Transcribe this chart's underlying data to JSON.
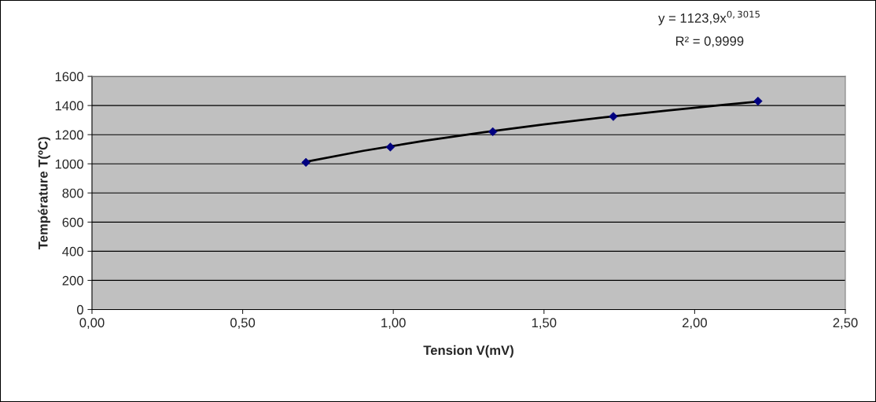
{
  "chart_data": {
    "type": "scatter",
    "xlabel": "Tension V(mV)",
    "ylabel": "Température T(ºC)",
    "annotations": [
      "y = 1123,9x$^{0,3015}$",
      "R² = 0,9999"
    ],
    "series": [
      {
        "color": "#000080",
        "marker": "diamond",
        "x": [
          0.71,
          0.99,
          1.33,
          1.73,
          2.21
        ],
        "values": [
          1010,
          1115,
          1220,
          1325,
          1430
        ]
      },
      {
        "type": "line",
        "color": "#000000",
        "marker": "none",
        "line_style": "solid",
        "x": [
          0.71,
          0.9,
          1.1,
          1.3,
          1.5,
          1.7,
          1.9,
          2.1,
          2.21
        ],
        "values": [
          1014,
          1089,
          1157,
          1216,
          1270,
          1319,
          1364,
          1406,
          1427
        ]
      }
    ],
    "xlim": [
      0,
      2.5
    ],
    "xticks": [
      {
        "value": 0,
        "label": "0,00"
      },
      {
        "value": 0.5,
        "label": "0,50"
      },
      {
        "value": 1,
        "label": "1,00"
      },
      {
        "value": 1.5,
        "label": "1,50"
      },
      {
        "value": 2,
        "label": "2,00"
      },
      {
        "value": 2.5,
        "label": "2,50"
      }
    ],
    "ylim": [
      0,
      1600
    ],
    "yticks": [
      0,
      200,
      400,
      600,
      800,
      1000,
      1200,
      1400,
      1600
    ],
    "grid": "y"
  }
}
